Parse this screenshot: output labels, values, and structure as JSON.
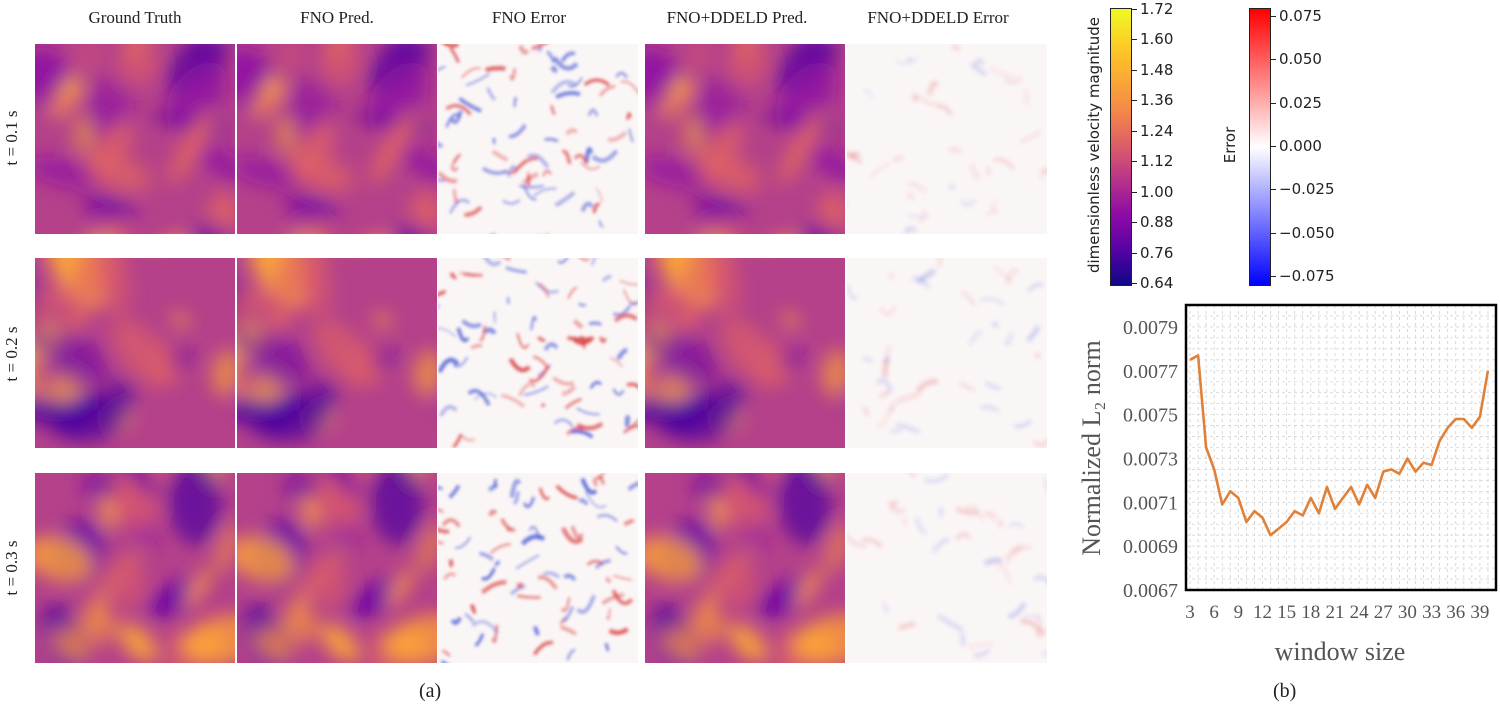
{
  "figure": {
    "columns": [
      "Ground Truth",
      "FNO Pred.",
      "FNO Error",
      "FNO+DDELD Pred.",
      "FNO+DDELD Error"
    ],
    "rows": [
      "t = 0.1 s",
      "t = 0.2 s",
      "t = 0.3 s"
    ],
    "panel_a_label": "(a)",
    "panel_b_label": "(b)"
  },
  "colorbars": {
    "velocity": {
      "label": "dimensionless velocity magnitude",
      "ticks": [
        "1.72",
        "1.60",
        "1.48",
        "1.36",
        "1.24",
        "1.12",
        "1.00",
        "0.88",
        "0.76",
        "0.64"
      ],
      "colormap": "plasma"
    },
    "error": {
      "label": "Error",
      "ticks": [
        "0.075",
        "0.050",
        "0.025",
        "0.000",
        "−0.025",
        "−0.050",
        "−0.075"
      ],
      "colormap": "bwr"
    }
  },
  "chart_data": {
    "type": "line",
    "xlabel": "window size",
    "ylabel": "Normalized L₂ norm",
    "x_ticks": [
      "3",
      "6",
      "9",
      "12",
      "15",
      "18",
      "21",
      "24",
      "27",
      "30",
      "33",
      "36",
      "39"
    ],
    "y_ticks": [
      "0.0079",
      "0.0077",
      "0.0075",
      "0.0073",
      "0.0071",
      "0.0069",
      "0.0067"
    ],
    "xlim": [
      2.5,
      41
    ],
    "ylim": [
      0.0067,
      0.008
    ],
    "grid": true,
    "line_color": "#e0813a",
    "x": [
      3,
      4,
      5,
      6,
      7,
      8,
      9,
      10,
      11,
      12,
      13,
      14,
      15,
      16,
      17,
      18,
      19,
      20,
      21,
      22,
      23,
      24,
      25,
      26,
      27,
      28,
      29,
      30,
      31,
      32,
      33,
      34,
      35,
      36,
      37,
      38,
      39,
      40
    ],
    "values": [
      0.00775,
      0.00777,
      0.00735,
      0.00725,
      0.00709,
      0.00715,
      0.00712,
      0.00701,
      0.00706,
      0.00703,
      0.00695,
      0.00698,
      0.00701,
      0.00706,
      0.00704,
      0.00712,
      0.00705,
      0.00717,
      0.00707,
      0.00712,
      0.00717,
      0.00709,
      0.00718,
      0.00712,
      0.00724,
      0.00725,
      0.00723,
      0.0073,
      0.00724,
      0.00728,
      0.00727,
      0.00738,
      0.00744,
      0.00748,
      0.00748,
      0.00744,
      0.00749,
      0.0077
    ]
  }
}
